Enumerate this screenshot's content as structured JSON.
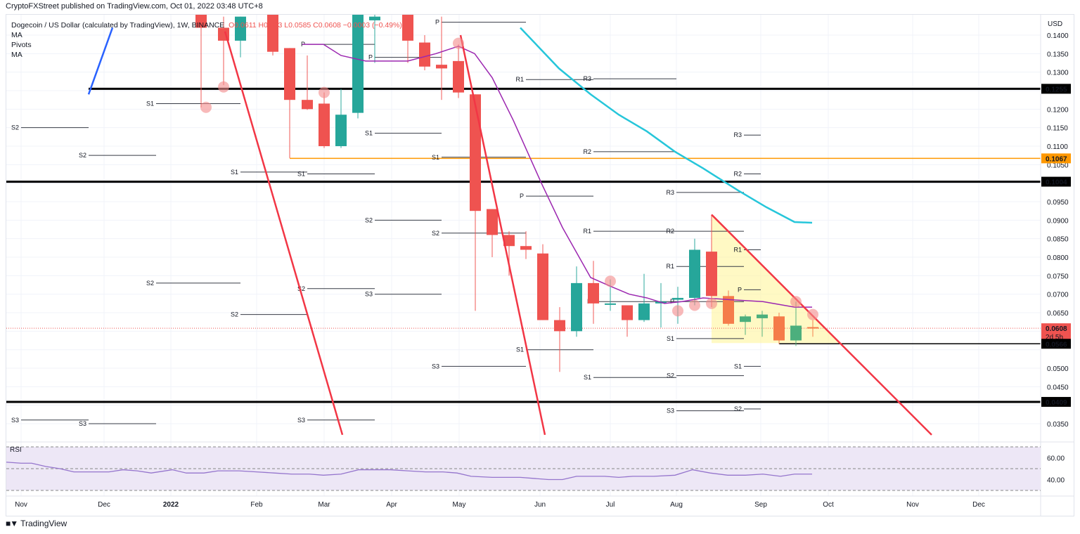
{
  "header": {
    "publisher": "CryptoFXStreet published on TradingView.com, Oct 01, 2022 03:48 UTC+8"
  },
  "legend": {
    "symbol": "Dogecoin / US Dollar (calculated by TradingView), 1W, BINANCE",
    "ohlc": "O0.0611  H0.063  L0.0585  C0.0608  −0.0003 (−0.49%)",
    "indicators": [
      "MA",
      "Pivots",
      "MA"
    ]
  },
  "price_axis": {
    "currency": "USD",
    "ticks": [
      "0.1400",
      "0.1350",
      "0.1300",
      "0.1200",
      "0.1150",
      "0.1100",
      "0.1050",
      "0.0950",
      "0.0900",
      "0.0850",
      "0.0800",
      "0.0750",
      "0.0700",
      "0.0650",
      "0.0500",
      "0.0450",
      "0.0350"
    ],
    "badges": [
      {
        "label": "0.1255",
        "bg": "#000000",
        "fg": "#ffffff"
      },
      {
        "label": "0.1067",
        "bg": "#ff9800",
        "fg": "#000000"
      },
      {
        "label": "0.1004",
        "bg": "#000000",
        "fg": "#ffffff"
      },
      {
        "label": "0.0608",
        "sub": "2d 5h",
        "bg": "#ef5350",
        "fg": "#ffffff"
      },
      {
        "label": "0.0566",
        "bg": "#000000",
        "fg": "#ffffff"
      },
      {
        "label": "0.0409",
        "bg": "#000000",
        "fg": "#ffffff"
      }
    ]
  },
  "time_axis": {
    "labels": [
      "Nov",
      "Dec",
      "2022",
      "Feb",
      "Mar",
      "Apr",
      "May",
      "Jun",
      "Jul",
      "Aug",
      "Sep",
      "Oct",
      "Nov",
      "Dec"
    ]
  },
  "rsi": {
    "label": "RSI",
    "ticks": [
      "60.00",
      "40.00"
    ]
  },
  "footer": {
    "brand": "TradingView"
  },
  "colors": {
    "up": "#26a69a",
    "down": "#ef5350",
    "orange_candle": "#f57c4a",
    "ma_fast": "#9c27b0",
    "ma_slow": "#26c6da",
    "trendline": "#f23645",
    "support_line": "#000000",
    "horizontal_orange": "#ff9800",
    "triangle_fill": "#fff59d",
    "rsi_line": "#9575cd",
    "rsi_band": "#ede7f6"
  },
  "chart_data": {
    "type": "candlestick",
    "title": "Dogecoin / US Dollar (calculated by TradingView), 1W, BINANCE",
    "xlabel": "",
    "ylabel": "USD",
    "ylim": [
      0.031,
      0.142
    ],
    "x_ticks": [
      "Nov",
      "Dec",
      "2022",
      "Feb",
      "Mar",
      "Apr",
      "May",
      "Jun",
      "Jul",
      "Aug",
      "Sep",
      "Oct",
      "Nov",
      "Dec"
    ],
    "y_ticks": [
      0.14,
      0.135,
      0.13,
      0.125,
      0.12,
      0.115,
      0.11,
      0.105,
      0.1,
      0.095,
      0.09,
      0.085,
      0.08,
      0.075,
      0.07,
      0.065,
      0.06,
      0.055,
      0.05,
      0.045,
      0.04,
      0.035
    ],
    "last_ohlc": {
      "open": 0.0611,
      "high": 0.063,
      "low": 0.0585,
      "close": 0.0608,
      "change": -0.0003,
      "change_pct": -0.49
    },
    "horizontal_levels": [
      {
        "price": 0.1255,
        "color": "#000000",
        "style": "thick"
      },
      {
        "price": 0.1067,
        "color": "#ff9800",
        "style": "thin"
      },
      {
        "price": 0.1004,
        "color": "#000000",
        "style": "thick"
      },
      {
        "price": 0.0566,
        "color": "#000000",
        "style": "thin"
      },
      {
        "price": 0.0409,
        "color": "#000000",
        "style": "thick"
      }
    ],
    "candles": [
      {
        "x": 286,
        "o": 0.148,
        "h": 0.15,
        "l": 0.1205,
        "c": 0.142
      },
      {
        "x": 318,
        "o": 0.142,
        "h": 0.145,
        "l": 0.1265,
        "c": 0.1385
      },
      {
        "x": 342,
        "o": 0.1385,
        "h": 0.145,
        "l": 0.134,
        "c": 0.145
      },
      {
        "x": 388,
        "o": 0.148,
        "h": 0.15,
        "l": 0.1345,
        "c": 0.1355
      },
      {
        "x": 412,
        "o": 0.1365,
        "h": 0.1365,
        "l": 0.1068,
        "c": 0.1225
      },
      {
        "x": 437,
        "o": 0.1225,
        "h": 0.1345,
        "l": 0.1198,
        "c": 0.12
      },
      {
        "x": 461,
        "o": 0.1215,
        "h": 0.1245,
        "l": 0.1095,
        "c": 0.11
      },
      {
        "x": 485,
        "o": 0.11,
        "h": 0.1255,
        "l": 0.1095,
        "c": 0.1185
      },
      {
        "x": 509,
        "o": 0.119,
        "h": 0.148,
        "l": 0.1175,
        "c": 0.148
      },
      {
        "x": 533,
        "o": 0.144,
        "h": 0.15,
        "l": 0.1325,
        "c": 0.145
      },
      {
        "x": 580,
        "o": 0.148,
        "h": 0.15,
        "l": 0.1325,
        "c": 0.1385
      },
      {
        "x": 604,
        "o": 0.138,
        "h": 0.14,
        "l": 0.1305,
        "c": 0.1315
      },
      {
        "x": 628,
        "o": 0.132,
        "h": 0.145,
        "l": 0.1225,
        "c": 0.131
      },
      {
        "x": 652,
        "o": 0.133,
        "h": 0.1375,
        "l": 0.123,
        "c": 0.1245
      },
      {
        "x": 676,
        "o": 0.124,
        "h": 0.124,
        "l": 0.0655,
        "c": 0.0925
      },
      {
        "x": 700,
        "o": 0.093,
        "h": 0.093,
        "l": 0.08,
        "c": 0.086
      },
      {
        "x": 724,
        "o": 0.086,
        "h": 0.087,
        "l": 0.075,
        "c": 0.083
      },
      {
        "x": 748,
        "o": 0.083,
        "h": 0.087,
        "l": 0.0795,
        "c": 0.082
      },
      {
        "x": 772,
        "o": 0.081,
        "h": 0.0835,
        "l": 0.063,
        "c": 0.063
      },
      {
        "x": 796,
        "o": 0.063,
        "h": 0.0665,
        "l": 0.049,
        "c": 0.06
      },
      {
        "x": 820,
        "o": 0.06,
        "h": 0.0775,
        "l": 0.0585,
        "c": 0.073
      },
      {
        "x": 844,
        "o": 0.073,
        "h": 0.079,
        "l": 0.062,
        "c": 0.0675
      },
      {
        "x": 868,
        "o": 0.0675,
        "h": 0.074,
        "l": 0.0655,
        "c": 0.0675
      },
      {
        "x": 892,
        "o": 0.067,
        "h": 0.067,
        "l": 0.0585,
        "c": 0.063
      },
      {
        "x": 916,
        "o": 0.063,
        "h": 0.0755,
        "l": 0.0625,
        "c": 0.0675
      },
      {
        "x": 940,
        "o": 0.0675,
        "h": 0.073,
        "l": 0.061,
        "c": 0.068
      },
      {
        "x": 964,
        "o": 0.0685,
        "h": 0.072,
        "l": 0.062,
        "c": 0.069
      },
      {
        "x": 988,
        "o": 0.069,
        "h": 0.085,
        "l": 0.067,
        "c": 0.082
      },
      {
        "x": 1012,
        "o": 0.0815,
        "h": 0.0915,
        "l": 0.0665,
        "c": 0.0695
      },
      {
        "x": 1036,
        "o": 0.0695,
        "h": 0.071,
        "l": 0.0615,
        "c": 0.062
      },
      {
        "x": 1060,
        "o": 0.0625,
        "h": 0.0645,
        "l": 0.059,
        "c": 0.064
      },
      {
        "x": 1084,
        "o": 0.0635,
        "h": 0.0655,
        "l": 0.0585,
        "c": 0.0645
      },
      {
        "x": 1108,
        "o": 0.064,
        "h": 0.065,
        "l": 0.0565,
        "c": 0.0575
      },
      {
        "x": 1132,
        "o": 0.0575,
        "h": 0.068,
        "l": 0.056,
        "c": 0.0615
      },
      {
        "x": 1156,
        "o": 0.0611,
        "h": 0.063,
        "l": 0.0585,
        "c": 0.0608
      }
    ],
    "ma_fast": {
      "name": "MA",
      "color": "#9c27b0",
      "points": [
        [
          430,
          0.1375
        ],
        [
          460,
          0.1375
        ],
        [
          485,
          0.1345
        ],
        [
          520,
          0.133
        ],
        [
          580,
          0.133
        ],
        [
          620,
          0.135
        ],
        [
          652,
          0.137
        ],
        [
          675,
          0.135
        ],
        [
          700,
          0.1285
        ],
        [
          730,
          0.117
        ],
        [
          770,
          0.1
        ],
        [
          800,
          0.088
        ],
        [
          840,
          0.0745
        ],
        [
          870,
          0.072
        ],
        [
          895,
          0.07
        ],
        [
          920,
          0.069
        ],
        [
          945,
          0.0675
        ],
        [
          970,
          0.068
        ],
        [
          1000,
          0.069
        ],
        [
          1040,
          0.0685
        ],
        [
          1085,
          0.068
        ],
        [
          1130,
          0.0665
        ],
        [
          1155,
          0.0665
        ]
      ]
    },
    "ma_slow": {
      "name": "MA",
      "color": "#26c6da",
      "points": [
        [
          740,
          0.142
        ],
        [
          795,
          0.131
        ],
        [
          840,
          0.124
        ],
        [
          880,
          0.1185
        ],
        [
          920,
          0.114
        ],
        [
          960,
          0.1085
        ],
        [
          1000,
          0.104
        ],
        [
          1050,
          0.098
        ],
        [
          1090,
          0.0935
        ],
        [
          1130,
          0.0895
        ],
        [
          1155,
          0.0893
        ]
      ]
    },
    "trendlines": [
      {
        "color": "#2962ff",
        "from": [
          126,
          0.124
        ],
        "to": [
          160,
          0.142
        ]
      },
      {
        "color": "#f23645",
        "from": [
          320,
          0.141
        ],
        "to": [
          487,
          0.032
        ]
      },
      {
        "color": "#f23645",
        "from": [
          655,
          0.14
        ],
        "to": [
          775,
          0.032
        ]
      },
      {
        "color": "#f23645",
        "from": [
          1012,
          0.0915
        ],
        "to": [
          1325,
          0.032
        ]
      }
    ],
    "triangle": {
      "points": [
        [
          1012,
          0.0915
        ],
        [
          1012,
          0.0568
        ],
        [
          1195,
          0.0568
        ]
      ],
      "fill": "#fff59d"
    },
    "pivot_markers": [
      {
        "x": 293,
        "price": 0.1205
      },
      {
        "x": 318,
        "price": 0.126
      },
      {
        "x": 461,
        "price": 0.1245
      },
      {
        "x": 652,
        "price": 0.1378
      },
      {
        "x": 868,
        "price": 0.0735
      },
      {
        "x": 964,
        "price": 0.0655
      },
      {
        "x": 988,
        "price": 0.067
      },
      {
        "x": 1012,
        "price": 0.0675
      },
      {
        "x": 1132,
        "price": 0.068
      },
      {
        "x": 1156,
        "price": 0.0645
      }
    ],
    "pivot_levels": [
      {
        "label": "S2",
        "x1": 30,
        "x2": 126,
        "price": 0.115
      },
      {
        "label": "S2",
        "x1": 126,
        "x2": 222,
        "price": 0.1075
      },
      {
        "label": "S1",
        "x1": 222,
        "x2": 342,
        "price": 0.1215
      },
      {
        "label": "S2",
        "x1": 222,
        "x2": 342,
        "price": 0.073
      },
      {
        "label": "S3",
        "x1": 30,
        "x2": 126,
        "price": 0.036
      },
      {
        "label": "S3",
        "x1": 126,
        "x2": 222,
        "price": 0.035
      },
      {
        "label": "S1",
        "x1": 342,
        "x2": 437,
        "price": 0.103
      },
      {
        "label": "S2",
        "x1": 342,
        "x2": 437,
        "price": 0.0645
      },
      {
        "label": "P",
        "x1": 437,
        "x2": 533,
        "price": 0.1375
      },
      {
        "label": "S1",
        "x1": 437,
        "x2": 533,
        "price": 0.1025
      },
      {
        "label": "S2",
        "x1": 437,
        "x2": 533,
        "price": 0.0715
      },
      {
        "label": "S3",
        "x1": 437,
        "x2": 533,
        "price": 0.036
      },
      {
        "label": "P",
        "x1": 533,
        "x2": 628,
        "price": 0.134
      },
      {
        "label": "S1",
        "x1": 533,
        "x2": 628,
        "price": 0.1135
      },
      {
        "label": "S2",
        "x1": 533,
        "x2": 628,
        "price": 0.09
      },
      {
        "label": "S3",
        "x1": 533,
        "x2": 628,
        "price": 0.07
      },
      {
        "label": "P",
        "x1": 628,
        "x2": 748,
        "price": 0.1435
      },
      {
        "label": "S1",
        "x1": 628,
        "x2": 748,
        "price": 0.107
      },
      {
        "label": "S2",
        "x1": 628,
        "x2": 748,
        "price": 0.0865
      },
      {
        "label": "S3",
        "x1": 628,
        "x2": 748,
        "price": 0.0505
      },
      {
        "label": "R1",
        "x1": 748,
        "x2": 844,
        "price": 0.128
      },
      {
        "label": "P",
        "x1": 748,
        "x2": 844,
        "price": 0.0965
      },
      {
        "label": "S1",
        "x1": 748,
        "x2": 844,
        "price": 0.055
      },
      {
        "label": "R3",
        "x1": 844,
        "x2": 962,
        "price": 0.1282
      },
      {
        "label": "R2",
        "x1": 844,
        "x2": 962,
        "price": 0.1085
      },
      {
        "label": "R1",
        "x1": 844,
        "x2": 962,
        "price": 0.087
      },
      {
        "label": "P",
        "x1": 844,
        "x2": 962,
        "price": 0.068
      },
      {
        "label": "S1",
        "x1": 844,
        "x2": 962,
        "price": 0.0475
      },
      {
        "label": "R3",
        "x1": 962,
        "x2": 1058,
        "price": 0.0975
      },
      {
        "label": "R2",
        "x1": 962,
        "x2": 1058,
        "price": 0.087
      },
      {
        "label": "R1",
        "x1": 962,
        "x2": 1058,
        "price": 0.0775
      },
      {
        "label": "P",
        "x1": 962,
        "x2": 1058,
        "price": 0.068
      },
      {
        "label": "S1",
        "x1": 962,
        "x2": 1058,
        "price": 0.058
      },
      {
        "label": "S2",
        "x1": 962,
        "x2": 1058,
        "price": 0.048
      },
      {
        "label": "S3",
        "x1": 962,
        "x2": 1058,
        "price": 0.0385
      },
      {
        "label": "R3",
        "x1": 1058,
        "x2": 1082,
        "price": 0.113
      },
      {
        "label": "R2",
        "x1": 1058,
        "x2": 1082,
        "price": 0.1025
      },
      {
        "label": "R1",
        "x1": 1058,
        "x2": 1082,
        "price": 0.082
      },
      {
        "label": "P",
        "x1": 1058,
        "x2": 1082,
        "price": 0.0712
      },
      {
        "label": "S1",
        "x1": 1058,
        "x2": 1082,
        "price": 0.0505
      },
      {
        "label": "S2",
        "x1": 1058,
        "x2": 1082,
        "price": 0.039
      }
    ],
    "current_price": 0.0608,
    "rsi": {
      "x": [
        8,
        30,
        45,
        65,
        85,
        105,
        130,
        155,
        175,
        195,
        215,
        245,
        265,
        290,
        310,
        340,
        365,
        390,
        415,
        440,
        460,
        485,
        510,
        555,
        580,
        605,
        630,
        650,
        670,
        700,
        720,
        740,
        760,
        780,
        800,
        820,
        840,
        860,
        880,
        900,
        930,
        960,
        985,
        1010,
        1035,
        1060,
        1085,
        1110,
        1130,
        1155
      ],
      "values": [
        56,
        55,
        55,
        52,
        50,
        47,
        47,
        47,
        49,
        48,
        46,
        49,
        46,
        46,
        48,
        48,
        47,
        46,
        45,
        45,
        44,
        45,
        49,
        49,
        48,
        47,
        47,
        46,
        43,
        42,
        42,
        42,
        41,
        40,
        40,
        43,
        43,
        43,
        42,
        43,
        43,
        44,
        49,
        46,
        44,
        44,
        45,
        43,
        45,
        45
      ],
      "ylim": [
        30,
        70
      ],
      "bands": [
        30,
        50,
        70
      ]
    }
  }
}
